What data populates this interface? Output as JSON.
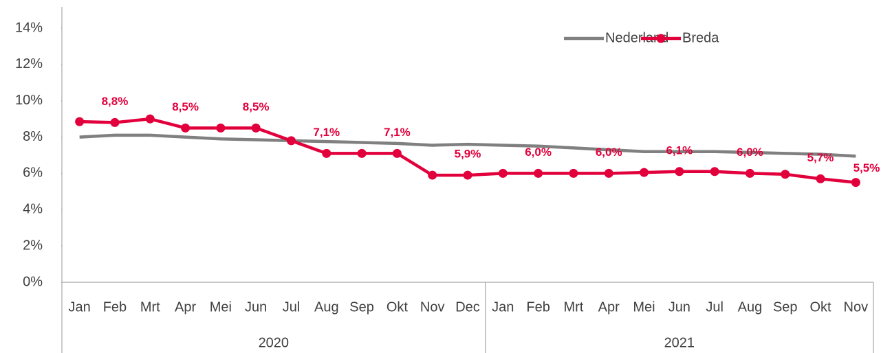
{
  "chart_data": {
    "type": "line",
    "groups": [
      {
        "label": "2020",
        "categories": [
          "Jan",
          "Feb",
          "Mrt",
          "Apr",
          "Mei",
          "Jun",
          "Jul",
          "Aug",
          "Sep",
          "Okt",
          "Nov",
          "Dec"
        ]
      },
      {
        "label": "2021",
        "categories": [
          "Jan",
          "Feb",
          "Mrt",
          "Apr",
          "Mei",
          "Jun",
          "Jul",
          "Aug",
          "Sep",
          "Okt",
          "Nov"
        ]
      }
    ],
    "series": [
      {
        "name": "Nederland",
        "color": "#808080",
        "marker": false,
        "values": [
          8.0,
          8.1,
          8.1,
          8.0,
          7.9,
          7.85,
          7.8,
          7.75,
          7.7,
          7.65,
          7.55,
          7.6,
          7.55,
          7.5,
          7.4,
          7.3,
          7.2,
          7.2,
          7.2,
          7.15,
          7.1,
          7.05,
          6.95
        ]
      },
      {
        "name": "Breda",
        "color": "#e2003c",
        "marker": true,
        "values": [
          8.85,
          8.8,
          9.0,
          8.5,
          8.5,
          8.5,
          7.8,
          7.1,
          7.1,
          7.1,
          5.9,
          5.9,
          6.0,
          6.0,
          6.0,
          6.0,
          6.05,
          6.1,
          6.1,
          6.0,
          5.95,
          5.7,
          5.5
        ],
        "value_labels": [
          null,
          "8,8%",
          null,
          "8,5%",
          null,
          "8,5%",
          null,
          "7,1%",
          null,
          "7,1%",
          null,
          "5,9%",
          null,
          "6,0%",
          null,
          "6,0%",
          null,
          "6,1%",
          null,
          "6,0%",
          null,
          "5,7%",
          "5,5%"
        ]
      }
    ],
    "ylim": [
      0,
      14
    ],
    "yticks": [
      {
        "value": 0,
        "label": "0%"
      },
      {
        "value": 2,
        "label": "2%"
      },
      {
        "value": 4,
        "label": "4%"
      },
      {
        "value": 6,
        "label": "6%"
      },
      {
        "value": 8,
        "label": "8%"
      },
      {
        "value": 10,
        "label": "10%"
      },
      {
        "value": 12,
        "label": "12%"
      },
      {
        "value": 14,
        "label": "14%"
      }
    ],
    "grid": false,
    "legend": "top-right"
  }
}
